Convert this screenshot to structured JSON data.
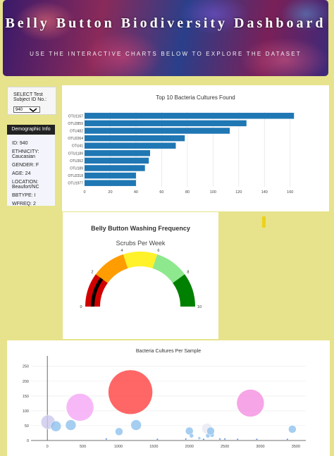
{
  "header": {
    "title": "Belly Button Biodiversity Dashboard",
    "subtitle": "USE THE INTERACTIVE CHARTS BELOW TO EXPLORE THE DATASET"
  },
  "selector": {
    "label": "SELECT Test Subject ID No.:",
    "selected": "940"
  },
  "demographics": {
    "heading": "Demographic Info",
    "items": [
      "ID: 940",
      "ETHNICITY: Caucasian",
      "GENDER: F",
      "AGE: 24",
      "LOCATION: Beaufort/NC",
      "BBTYPE: I",
      "WFREQ: 2"
    ]
  },
  "colors": {
    "bar": "#1f77b4",
    "page_bg": "#e6e38c",
    "gauge": [
      "#d00000",
      "#ff9c00",
      "#fff22a",
      "#8ee88e",
      "#008000"
    ],
    "needle": "#000000"
  },
  "chart_data": [
    {
      "type": "bar",
      "orientation": "horizontal",
      "title": "Top 10 Bacteria Cultures Found",
      "categories": [
        "OTU1167",
        "OTU2859",
        "OTU482",
        "OTU2264",
        "OTU41",
        "OTU1189",
        "OTU352",
        "OTU189",
        "OTU2318",
        "OTU1977"
      ],
      "values": [
        163,
        126,
        113,
        78,
        71,
        51,
        50,
        47,
        40,
        40
      ],
      "xlim": [
        0,
        170
      ],
      "xticks": [
        "0",
        "20",
        "40",
        "60",
        "80",
        "100",
        "120",
        "140",
        "160"
      ],
      "grid": true
    },
    {
      "type": "gauge",
      "title": "Belly Button Washing Frequency",
      "subtitle": "Scrubs Per Week",
      "range": [
        0,
        10
      ],
      "ticks": [
        "0",
        "2",
        "4",
        "6",
        "8",
        "10"
      ],
      "value": 2
    },
    {
      "type": "scatter",
      "title": "Bacteria Cultures Per Sample",
      "xticks": [
        "0",
        "500",
        "1000",
        "1500",
        "2000",
        "2500",
        "3000",
        "3500"
      ],
      "yticks": [
        "0",
        "50",
        "100",
        "150",
        "200",
        "250"
      ],
      "xlim": [
        -230,
        3640
      ],
      "ylim": [
        0,
        285
      ],
      "points": [
        {
          "x": 10,
          "y": 62,
          "size": 40,
          "color": "#ccc8ee"
        },
        {
          "x": 120,
          "y": 48,
          "size": 30,
          "color": "#8fc2ee"
        },
        {
          "x": 330,
          "y": 52,
          "size": 30,
          "color": "#8fc2ee"
        },
        {
          "x": 460,
          "y": 112,
          "size": 78,
          "color": "#f5a6f5"
        },
        {
          "x": 1170,
          "y": 163,
          "size": 126,
          "color": "#ff4040"
        },
        {
          "x": 1010,
          "y": 30,
          "size": 22,
          "color": "#8fc2ee"
        },
        {
          "x": 1250,
          "y": 52,
          "size": 30,
          "color": "#8fc2ee"
        },
        {
          "x": 2000,
          "y": 32,
          "size": 22,
          "color": "#8fc2ee"
        },
        {
          "x": 2030,
          "y": 16,
          "size": 12,
          "color": "#8fc2ee"
        },
        {
          "x": 2140,
          "y": 8,
          "size": 8,
          "color": "#8fc2ee"
        },
        {
          "x": 2250,
          "y": 40,
          "size": 30,
          "color": "#e8e8f2"
        },
        {
          "x": 2260,
          "y": 16,
          "size": 12,
          "color": "#8fc2ee"
        },
        {
          "x": 2320,
          "y": 18,
          "size": 12,
          "color": "#8fc2ee"
        },
        {
          "x": 2300,
          "y": 32,
          "size": 22,
          "color": "#8fc2ee"
        },
        {
          "x": 2860,
          "y": 126,
          "size": 78,
          "color": "#f48ee0"
        },
        {
          "x": 3450,
          "y": 38,
          "size": 22,
          "color": "#8fc2ee"
        },
        {
          "x": 2430,
          "y": 5,
          "size": 5,
          "color": "#3a6fd0"
        },
        {
          "x": 3380,
          "y": 4,
          "size": 5,
          "color": "#3a6fd0"
        },
        {
          "x": 2950,
          "y": 4,
          "size": 5,
          "color": "#3a6fd0"
        },
        {
          "x": 2500,
          "y": 5,
          "size": 5,
          "color": "#3a6fd0"
        },
        {
          "x": 1950,
          "y": 5,
          "size": 5,
          "color": "#3a6fd0"
        },
        {
          "x": 830,
          "y": 5,
          "size": 5,
          "color": "#3a6fd0"
        },
        {
          "x": 1550,
          "y": 4,
          "size": 5,
          "color": "#3a6fd0"
        },
        {
          "x": 2200,
          "y": 4,
          "size": 5,
          "color": "#3a6fd0"
        },
        {
          "x": 2680,
          "y": 4,
          "size": 5,
          "color": "#3a6fd0"
        }
      ]
    }
  ]
}
